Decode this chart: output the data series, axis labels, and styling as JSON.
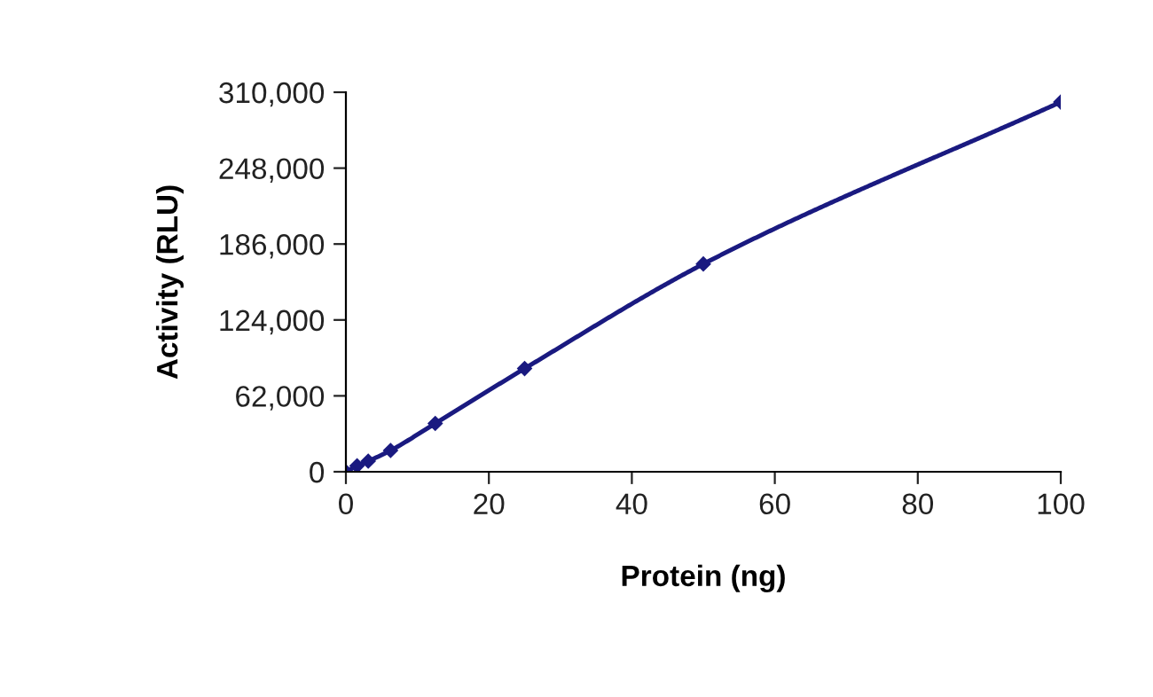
{
  "chart_data": {
    "type": "line",
    "xlabel": "Protein (ng)",
    "ylabel": "Activity (RLU)",
    "x": [
      0,
      1.5625,
      3.125,
      6.25,
      12.5,
      25,
      50,
      100
    ],
    "series": [
      {
        "color": "#1a1a80",
        "values": [
          0,
          4800,
          8700,
          17400,
          39500,
          84300,
          169700,
          302000
        ]
      }
    ],
    "xlim": [
      0,
      100
    ],
    "xticks": [
      0,
      20,
      40,
      60,
      80,
      100
    ],
    "ylim": [
      0,
      310000
    ],
    "yticks": [
      0,
      {
        "value": 62000,
        "label": "62,000"
      },
      {
        "value": 124000,
        "label": "124,000"
      },
      {
        "value": 186000,
        "label": "186,000"
      },
      {
        "value": 248000,
        "label": "248,000"
      },
      {
        "value": 310000,
        "label": "310,000"
      }
    ],
    "grid": false,
    "legend": false,
    "marker": "diamond",
    "line_style": "solid"
  }
}
